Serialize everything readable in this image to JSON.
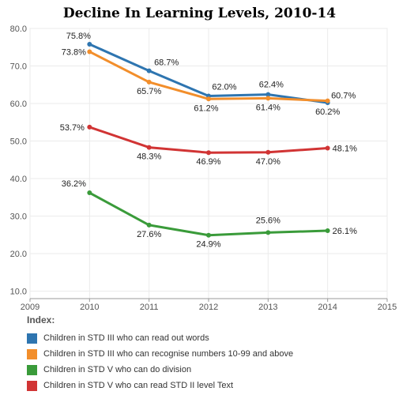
{
  "title": "Decline In Learning Levels, 2010-14",
  "legend_title": "Index:",
  "chart_data": {
    "type": "line",
    "title": "Decline In Learning Levels, 2010-14",
    "xlabel": "",
    "ylabel": "",
    "x_ticks": [
      2009,
      2010,
      2011,
      2012,
      2013,
      2014,
      2015
    ],
    "y_ticks": [
      10.0,
      20.0,
      30.0,
      40.0,
      50.0,
      60.0,
      70.0,
      80.0
    ],
    "xlim": [
      2009,
      2015
    ],
    "ylim": [
      8,
      80
    ],
    "grid": true,
    "legend_placement": "bottom",
    "x": [
      2010,
      2011,
      2012,
      2013,
      2014
    ],
    "series": [
      {
        "name": "Children in STD III who can read out words",
        "color": "#2e75b0",
        "values": [
          75.8,
          68.7,
          62.0,
          62.4,
          60.2
        ],
        "labels": [
          "75.8%",
          "68.7%",
          "62.0%",
          "62.4%",
          "60.2%"
        ]
      },
      {
        "name": "Children in STD III who can recognise numbers 10-99 and above",
        "color": "#f28e2b",
        "values": [
          73.8,
          65.7,
          61.2,
          61.4,
          60.7
        ],
        "labels": [
          "73.8%",
          "65.7%",
          "61.2%",
          "61.4%",
          "60.7%"
        ]
      },
      {
        "name": "Children in STD V who can do division",
        "color": "#3a9b3a",
        "values": [
          36.2,
          27.6,
          24.9,
          25.6,
          26.1
        ],
        "labels": [
          "36.2%",
          "27.6%",
          "24.9%",
          "25.6%",
          "26.1%"
        ]
      },
      {
        "name": "Children in STD V who can read STD II level Text",
        "color": "#d13434",
        "values": [
          53.7,
          48.3,
          46.9,
          47.0,
          48.1
        ],
        "labels": [
          "53.7%",
          "48.3%",
          "46.9%",
          "47.0%",
          "48.1%"
        ]
      }
    ]
  }
}
